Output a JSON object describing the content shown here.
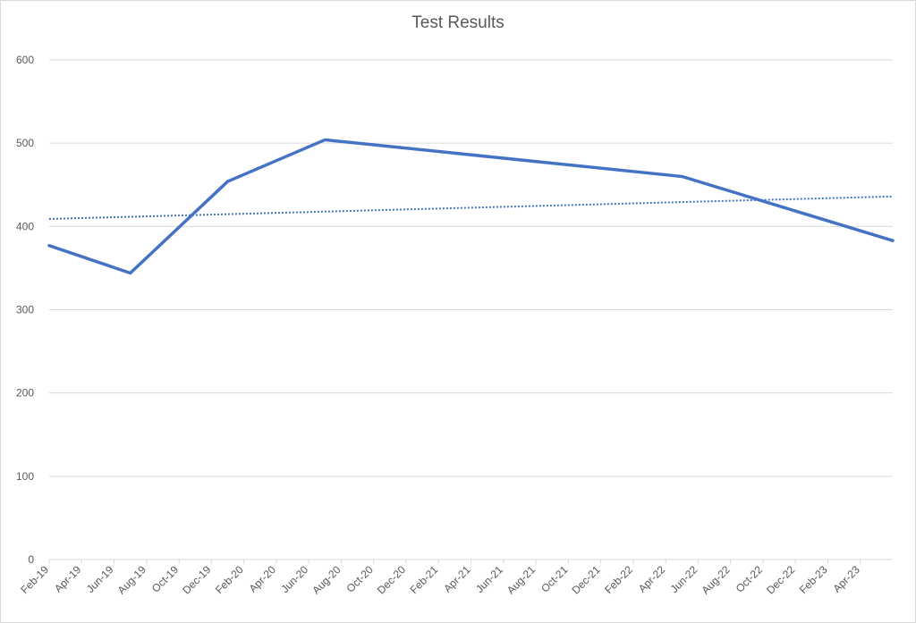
{
  "chart_data": {
    "type": "line",
    "title": "Test Results",
    "x": [
      "2019-02",
      "2019-07",
      "2020-01",
      "2020-07",
      "2022-05",
      "2023-06"
    ],
    "series": [
      {
        "color": "#4472c4",
        "values": [
          377,
          344,
          454,
          504,
          460,
          383
        ]
      }
    ],
    "trendline": {
      "x": [
        "2019-02",
        "2023-06"
      ],
      "values": [
        409,
        436
      ],
      "color": "#4472c4",
      "style": "dotted"
    },
    "xlim": [
      "2019-02",
      "2023-06"
    ],
    "xticks": [
      {
        "value": "2019-02",
        "label": "Feb-19"
      },
      {
        "value": "2019-04",
        "label": "Apr-19"
      },
      {
        "value": "2019-06",
        "label": "Jun-19"
      },
      {
        "value": "2019-08",
        "label": "Aug-19"
      },
      {
        "value": "2019-10",
        "label": "Oct-19"
      },
      {
        "value": "2019-12",
        "label": "Dec-19"
      },
      {
        "value": "2020-02",
        "label": "Feb-20"
      },
      {
        "value": "2020-04",
        "label": "Apr-20"
      },
      {
        "value": "2020-06",
        "label": "Jun-20"
      },
      {
        "value": "2020-08",
        "label": "Aug-20"
      },
      {
        "value": "2020-10",
        "label": "Oct-20"
      },
      {
        "value": "2020-12",
        "label": "Dec-20"
      },
      {
        "value": "2021-02",
        "label": "Feb-21"
      },
      {
        "value": "2021-04",
        "label": "Apr-21"
      },
      {
        "value": "2021-06",
        "label": "Jun-21"
      },
      {
        "value": "2021-08",
        "label": "Aug-21"
      },
      {
        "value": "2021-10",
        "label": "Oct-21"
      },
      {
        "value": "2021-12",
        "label": "Dec-21"
      },
      {
        "value": "2022-02",
        "label": "Feb-22"
      },
      {
        "value": "2022-04",
        "label": "Apr-22"
      },
      {
        "value": "2022-06",
        "label": "Jun-22"
      },
      {
        "value": "2022-08",
        "label": "Aug-22"
      },
      {
        "value": "2022-10",
        "label": "Oct-22"
      },
      {
        "value": "2022-12",
        "label": "Dec-22"
      },
      {
        "value": "2023-02",
        "label": "Feb-23"
      },
      {
        "value": "2023-04",
        "label": "Apr-23"
      }
    ],
    "ylim": [
      0,
      600
    ],
    "yticks": [
      0,
      100,
      200,
      300,
      400,
      500,
      600
    ],
    "grid": true
  }
}
